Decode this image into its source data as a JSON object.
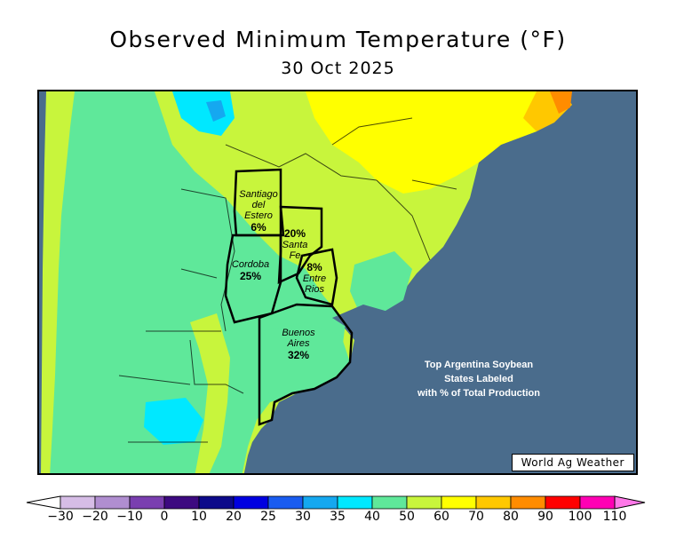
{
  "title": "Observed Minimum Temperature (°F)",
  "date": "30 Oct 2025",
  "states": [
    {
      "name_lines": [
        "Santiago",
        "del",
        "Estero"
      ],
      "percent": "6%"
    },
    {
      "name_lines": [
        "Santa",
        "Fe"
      ],
      "percent": "20%"
    },
    {
      "name_lines": [
        "Cordoba"
      ],
      "percent": "25%"
    },
    {
      "name_lines": [
        "Entre",
        "Rios"
      ],
      "percent": "8%"
    },
    {
      "name_lines": [
        "Buenos",
        "Aires"
      ],
      "percent": "32%"
    }
  ],
  "note_lines": [
    "Top Argentina Soybean",
    "States Labeled",
    "with % of Total Production"
  ],
  "credit": "World Ag Weather",
  "legend": {
    "ticks": [
      "−30",
      "−20",
      "−10",
      "0",
      "10",
      "20",
      "25",
      "30",
      "35",
      "40",
      "50",
      "60",
      "70",
      "80",
      "90",
      "100",
      "110"
    ],
    "colors": [
      "#d6bde6",
      "#b08ed0",
      "#7a3fb0",
      "#3d0a80",
      "#0c0a8a",
      "#0000e0",
      "#1a5cf0",
      "#15a8f0",
      "#00e8ff",
      "#5fe89a",
      "#c8f53c",
      "#ffff00",
      "#ffc800",
      "#ff8c00",
      "#ff0000",
      "#ff00b4"
    ],
    "below_color": "#ffffff",
    "above_color": "#ff78e8"
  },
  "colors": {
    "ocean": "#4a6c8c",
    "chile_cool": "#5fe89a",
    "mild": "#c8f53c",
    "warm": "#ffff00",
    "hot": "#ffc800"
  }
}
